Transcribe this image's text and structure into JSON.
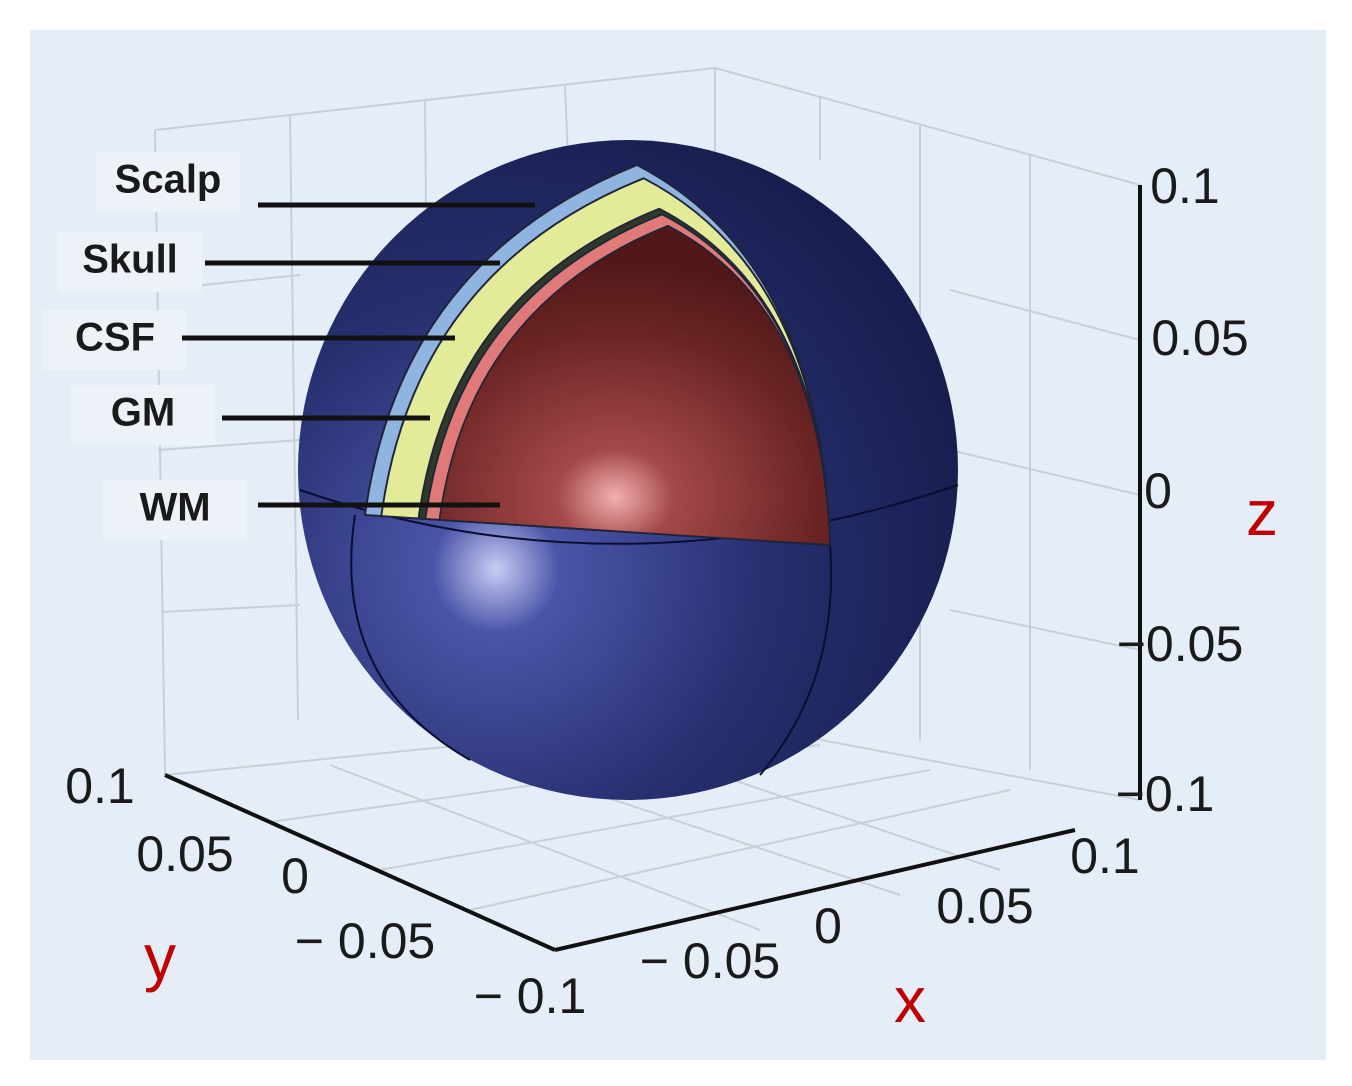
{
  "layers": [
    "Scalp",
    "Skull",
    "CSF",
    "GM",
    "WM"
  ],
  "axes": {
    "x": {
      "label": "x",
      "ticks": [
        "− 0.05",
        "0",
        "0.05",
        "0.1"
      ]
    },
    "y": {
      "label": "y",
      "ticks": [
        "0.1",
        "0.05",
        "0",
        "− 0.05",
        "− 0.1"
      ]
    },
    "z": {
      "label": "z",
      "ticks": [
        "0.1",
        "0.05",
        "0",
        "−0.05",
        "−0.1"
      ]
    }
  }
}
